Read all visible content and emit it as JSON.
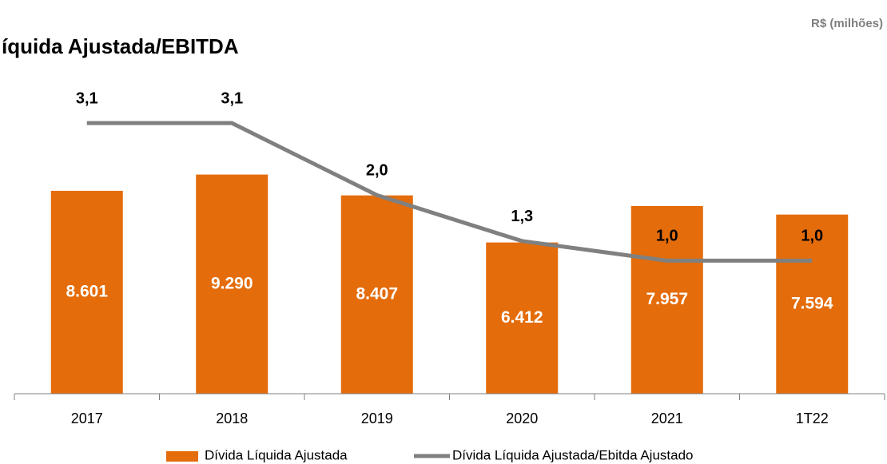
{
  "chart_data": {
    "type": "bar-line",
    "title": "íquida Ajustada/EBITDA",
    "subtitle": "R$ (milhões)",
    "categories": [
      "2017",
      "2018",
      "2019",
      "2020",
      "2021",
      "1T22"
    ],
    "series": [
      {
        "name": "Dívida Líquida Ajustada",
        "type": "bar",
        "color": "#e46c0a",
        "values": [
          8601,
          9290,
          8407,
          6412,
          7957,
          7594
        ],
        "value_labels": [
          "8.601",
          "9.290",
          "8.407",
          "6.412",
          "7.957",
          "7.594"
        ]
      },
      {
        "name": "Dívida Líquida Ajustada/Ebitda Ajustado",
        "type": "line",
        "axis": "y2",
        "color": "#808080",
        "values": [
          3.1,
          3.1,
          2.0,
          1.3,
          1.0,
          1.0
        ],
        "value_labels": [
          "3,1",
          "3,1",
          "2,0",
          "1,3",
          "1,0",
          "1,0"
        ]
      }
    ],
    "ylim": [
      0,
      13000
    ],
    "y2lim": [
      -1.03,
      3.65
    ]
  }
}
